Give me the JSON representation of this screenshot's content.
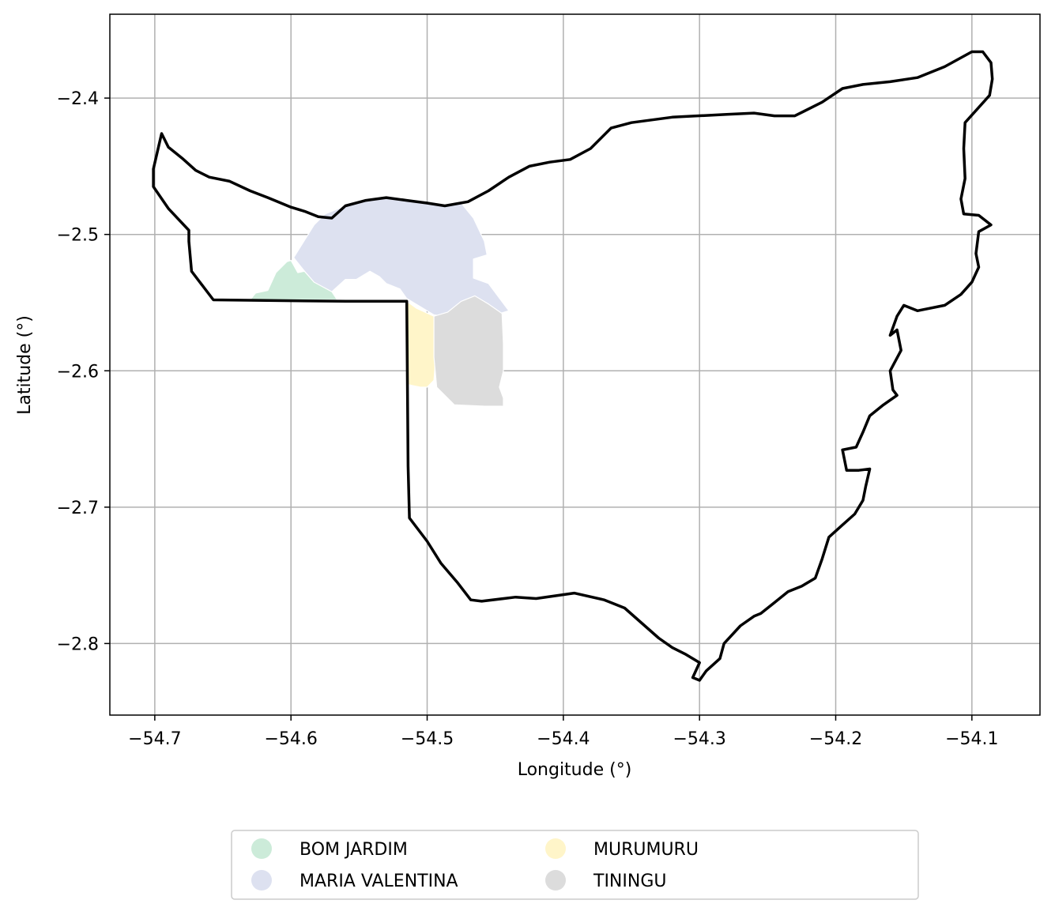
{
  "chart_data": {
    "type": "map",
    "xlabel": "Longitude (°)",
    "ylabel": "Latitude (°)",
    "xlim": [
      -54.733,
      -54.05
    ],
    "ylim": [
      -2.8525,
      -2.3385
    ],
    "xticks": [
      -54.7,
      -54.6,
      -54.5,
      -54.4,
      -54.3,
      -54.2,
      -54.1
    ],
    "xtick_labels": [
      "−54.7",
      "−54.6",
      "−54.5",
      "−54.4",
      "−54.3",
      "−54.2",
      "−54.1"
    ],
    "yticks": [
      -2.4,
      -2.5,
      -2.6,
      -2.7,
      -2.8
    ],
    "ytick_labels": [
      "−2.4",
      "−2.5",
      "−2.6",
      "−2.7",
      "−2.8"
    ],
    "grid": true,
    "legend_position": "bottom-center",
    "boundary": {
      "color": "#000000",
      "coords": [
        [
          -54.701,
          -2.452
        ],
        [
          -54.695,
          -2.426
        ],
        [
          -54.69,
          -2.436
        ],
        [
          -54.68,
          -2.444
        ],
        [
          -54.67,
          -2.453
        ],
        [
          -54.66,
          -2.458
        ],
        [
          -54.645,
          -2.461
        ],
        [
          -54.63,
          -2.468
        ],
        [
          -54.617,
          -2.473
        ],
        [
          -54.6,
          -2.48
        ],
        [
          -54.59,
          -2.483
        ],
        [
          -54.58,
          -2.487
        ],
        [
          -54.57,
          -2.488
        ],
        [
          -54.56,
          -2.479
        ],
        [
          -54.545,
          -2.475
        ],
        [
          -54.53,
          -2.473
        ],
        [
          -54.515,
          -2.475
        ],
        [
          -54.5,
          -2.477
        ],
        [
          -54.487,
          -2.479
        ],
        [
          -54.47,
          -2.476
        ],
        [
          -54.455,
          -2.468
        ],
        [
          -54.44,
          -2.458
        ],
        [
          -54.425,
          -2.45
        ],
        [
          -54.41,
          -2.447
        ],
        [
          -54.395,
          -2.445
        ],
        [
          -54.38,
          -2.437
        ],
        [
          -54.365,
          -2.422
        ],
        [
          -54.35,
          -2.418
        ],
        [
          -54.32,
          -2.414
        ],
        [
          -54.28,
          -2.412
        ],
        [
          -54.26,
          -2.411
        ],
        [
          -54.245,
          -2.413
        ],
        [
          -54.23,
          -2.413
        ],
        [
          -54.21,
          -2.403
        ],
        [
          -54.195,
          -2.393
        ],
        [
          -54.18,
          -2.39
        ],
        [
          -54.16,
          -2.388
        ],
        [
          -54.14,
          -2.385
        ],
        [
          -54.12,
          -2.377
        ],
        [
          -54.1,
          -2.366
        ],
        [
          -54.092,
          -2.366
        ],
        [
          -54.086,
          -2.374
        ],
        [
          -54.085,
          -2.386
        ],
        [
          -54.087,
          -2.398
        ],
        [
          -54.105,
          -2.418
        ],
        [
          -54.106,
          -2.437
        ],
        [
          -54.105,
          -2.459
        ],
        [
          -54.108,
          -2.474
        ],
        [
          -54.106,
          -2.485
        ],
        [
          -54.095,
          -2.486
        ],
        [
          -54.086,
          -2.493
        ],
        [
          -54.095,
          -2.498
        ],
        [
          -54.097,
          -2.514
        ],
        [
          -54.095,
          -2.524
        ],
        [
          -54.1,
          -2.535
        ],
        [
          -54.108,
          -2.544
        ],
        [
          -54.12,
          -2.552
        ],
        [
          -54.14,
          -2.556
        ],
        [
          -54.15,
          -2.552
        ],
        [
          -54.155,
          -2.56
        ],
        [
          -54.16,
          -2.574
        ],
        [
          -54.155,
          -2.57
        ],
        [
          -54.152,
          -2.585
        ],
        [
          -54.16,
          -2.6
        ],
        [
          -54.158,
          -2.614
        ],
        [
          -54.155,
          -2.618
        ],
        [
          -54.165,
          -2.625
        ],
        [
          -54.175,
          -2.633
        ],
        [
          -54.18,
          -2.645
        ],
        [
          -54.185,
          -2.656
        ],
        [
          -54.195,
          -2.658
        ],
        [
          -54.192,
          -2.673
        ],
        [
          -54.183,
          -2.673
        ],
        [
          -54.175,
          -2.672
        ],
        [
          -54.178,
          -2.685
        ],
        [
          -54.18,
          -2.695
        ],
        [
          -54.186,
          -2.705
        ],
        [
          -54.195,
          -2.713
        ],
        [
          -54.205,
          -2.722
        ],
        [
          -54.21,
          -2.738
        ],
        [
          -54.215,
          -2.752
        ],
        [
          -54.225,
          -2.758
        ],
        [
          -54.235,
          -2.762
        ],
        [
          -54.245,
          -2.77
        ],
        [
          -54.255,
          -2.778
        ],
        [
          -54.26,
          -2.78
        ],
        [
          -54.27,
          -2.787
        ],
        [
          -54.282,
          -2.8
        ],
        [
          -54.285,
          -2.811
        ],
        [
          -54.295,
          -2.82
        ],
        [
          -54.3,
          -2.827
        ],
        [
          -54.305,
          -2.825
        ],
        [
          -54.3,
          -2.814
        ],
        [
          -54.31,
          -2.808
        ],
        [
          -54.32,
          -2.803
        ],
        [
          -54.33,
          -2.796
        ],
        [
          -54.355,
          -2.774
        ],
        [
          -54.37,
          -2.768
        ],
        [
          -54.392,
          -2.763
        ],
        [
          -54.42,
          -2.767
        ],
        [
          -54.435,
          -2.766
        ],
        [
          -54.46,
          -2.769
        ],
        [
          -54.468,
          -2.768
        ],
        [
          -54.478,
          -2.755
        ],
        [
          -54.49,
          -2.741
        ],
        [
          -54.5,
          -2.725
        ],
        [
          -54.513,
          -2.708
        ],
        [
          -54.514,
          -2.67
        ],
        [
          -54.515,
          -2.549
        ],
        [
          -54.56,
          -2.549
        ],
        [
          -54.657,
          -2.548
        ],
        [
          -54.673,
          -2.527
        ],
        [
          -54.675,
          -2.505
        ],
        [
          -54.675,
          -2.497
        ],
        [
          -54.69,
          -2.481
        ],
        [
          -54.701,
          -2.465
        ],
        [
          -54.701,
          -2.452
        ]
      ]
    },
    "regions": [
      {
        "name": "BOM JARDIM",
        "color": "#ccebd9",
        "coords": [
          [
            -54.63,
            -2.548
          ],
          [
            -54.626,
            -2.543
          ],
          [
            -54.617,
            -2.541
          ],
          [
            -54.611,
            -2.528
          ],
          [
            -54.603,
            -2.52
          ],
          [
            -54.6,
            -2.519
          ],
          [
            -54.595,
            -2.528
          ],
          [
            -54.59,
            -2.527
          ],
          [
            -54.583,
            -2.535
          ],
          [
            -54.576,
            -2.537
          ],
          [
            -54.57,
            -2.542
          ],
          [
            -54.566,
            -2.548
          ],
          [
            -54.6,
            -2.548
          ],
          [
            -54.63,
            -2.548
          ]
        ]
      },
      {
        "name": "MARIA VALENTINA",
        "color": "#dde1f0",
        "coords": [
          [
            -54.598,
            -2.517
          ],
          [
            -54.583,
            -2.493
          ],
          [
            -54.575,
            -2.485
          ],
          [
            -54.56,
            -2.479
          ],
          [
            -54.545,
            -2.475
          ],
          [
            -54.53,
            -2.473
          ],
          [
            -54.515,
            -2.475
          ],
          [
            -54.5,
            -2.477
          ],
          [
            -54.487,
            -2.479
          ],
          [
            -54.475,
            -2.477
          ],
          [
            -54.466,
            -2.488
          ],
          [
            -54.458,
            -2.505
          ],
          [
            -54.456,
            -2.515
          ],
          [
            -54.466,
            -2.518
          ],
          [
            -54.466,
            -2.532
          ],
          [
            -54.455,
            -2.536
          ],
          [
            -54.44,
            -2.556
          ],
          [
            -54.45,
            -2.559
          ],
          [
            -54.46,
            -2.554
          ],
          [
            -54.47,
            -2.549
          ],
          [
            -54.48,
            -2.554
          ],
          [
            -54.487,
            -2.56
          ],
          [
            -54.495,
            -2.559
          ],
          [
            -54.505,
            -2.553
          ],
          [
            -54.515,
            -2.547
          ],
          [
            -54.52,
            -2.54
          ],
          [
            -54.53,
            -2.536
          ],
          [
            -54.535,
            -2.531
          ],
          [
            -54.542,
            -2.527
          ],
          [
            -54.552,
            -2.533
          ],
          [
            -54.56,
            -2.533
          ],
          [
            -54.57,
            -2.542
          ],
          [
            -54.583,
            -2.535
          ],
          [
            -54.59,
            -2.527
          ],
          [
            -54.598,
            -2.517
          ]
        ]
      },
      {
        "name": "MURUMURU",
        "color": "#fff5c9",
        "coords": [
          [
            -54.515,
            -2.549
          ],
          [
            -54.508,
            -2.554
          ],
          [
            -54.495,
            -2.56
          ],
          [
            -54.493,
            -2.581
          ],
          [
            -54.495,
            -2.607
          ],
          [
            -54.5,
            -2.612
          ],
          [
            -54.505,
            -2.612
          ],
          [
            -54.515,
            -2.61
          ],
          [
            -54.515,
            -2.549
          ]
        ]
      },
      {
        "name": "TININGU",
        "color": "#dcdcdc",
        "coords": [
          [
            -54.495,
            -2.56
          ],
          [
            -54.485,
            -2.557
          ],
          [
            -54.475,
            -2.549
          ],
          [
            -54.465,
            -2.545
          ],
          [
            -54.455,
            -2.551
          ],
          [
            -54.445,
            -2.558
          ],
          [
            -54.444,
            -2.58
          ],
          [
            -54.444,
            -2.6
          ],
          [
            -54.447,
            -2.612
          ],
          [
            -54.444,
            -2.62
          ],
          [
            -54.444,
            -2.626
          ],
          [
            -54.457,
            -2.626
          ],
          [
            -54.48,
            -2.625
          ],
          [
            -54.493,
            -2.612
          ],
          [
            -54.495,
            -2.59
          ],
          [
            -54.495,
            -2.56
          ]
        ]
      }
    ]
  }
}
